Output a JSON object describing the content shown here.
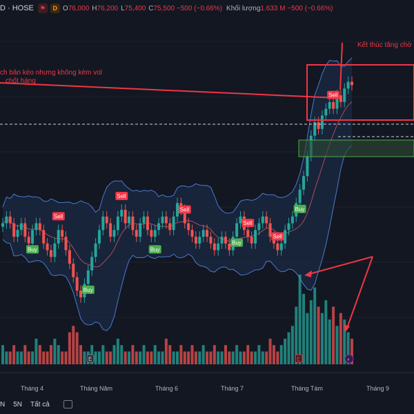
{
  "header": {
    "symbol": "D · HOSE",
    "badge_main": "D",
    "open_k": "O",
    "open": "76,000",
    "high_k": "H",
    "high": "76,200",
    "low_k": "L",
    "low": "75,400",
    "close_k": "C",
    "close": "75,500 −500 (−0.66%)",
    "volume_k": "Khối lượng",
    "volume": "1.633 M −500 (−0.66%)"
  },
  "annotations": {
    "note1": "ch bản kéo nhưng không kèm vol",
    "note2": "chốt hàng",
    "note3": "Kết thúc tăng chờ"
  },
  "signals": {
    "buy": "Buy",
    "sell": "Sell"
  },
  "event_icons": {
    "e": "E",
    "flash": "⚡"
  },
  "toolbar": {
    "r1": "N",
    "r2": "5N",
    "r3": "Tất cả",
    "goto_icon": "calendar-goto-icon"
  },
  "colors": {
    "up": "#26a69a",
    "down": "#ef5350",
    "band": "#4a7bd0",
    "accent": "#f23645"
  },
  "chart_data": {
    "type": "candlestick",
    "x_axis_labels": [
      "Tháng 4",
      "Tháng Năm",
      "Tháng 6",
      "Tháng 7",
      "Tháng Tám",
      "Tháng 9"
    ],
    "close_series": [
      55,
      56,
      55,
      53,
      54,
      55,
      53,
      52,
      54,
      55,
      54,
      52,
      51,
      50,
      52,
      54,
      53,
      51,
      49,
      47,
      45,
      44,
      46,
      48,
      50,
      52,
      54,
      56,
      55,
      53,
      54,
      56,
      57,
      55,
      56,
      54,
      53,
      55,
      56,
      54,
      53,
      54,
      55,
      56,
      55,
      54,
      56,
      58,
      57,
      55,
      54,
      53,
      52,
      53,
      54,
      53,
      52,
      51,
      52,
      53,
      52,
      51,
      53,
      55,
      56,
      54,
      53,
      52,
      54,
      55,
      56,
      55,
      53,
      52,
      51,
      52,
      54,
      55,
      56,
      58,
      60,
      62,
      65,
      68,
      70,
      69,
      71,
      72,
      73,
      72,
      74,
      73,
      75,
      76,
      75.5
    ],
    "volume": [
      3,
      2,
      2,
      3,
      2,
      2,
      3,
      2,
      2,
      4,
      3,
      2,
      2,
      3,
      4,
      3,
      2,
      2,
      5,
      6,
      5,
      3,
      2,
      2,
      3,
      2,
      2,
      3,
      2,
      2,
      3,
      4,
      3,
      2,
      2,
      3,
      2,
      2,
      3,
      2,
      2,
      3,
      2,
      2,
      4,
      3,
      2,
      2,
      3,
      2,
      2,
      3,
      2,
      2,
      3,
      2,
      2,
      3,
      2,
      2,
      3,
      2,
      2,
      3,
      2,
      2,
      3,
      2,
      2,
      3,
      2,
      2,
      4,
      3,
      2,
      3,
      4,
      5,
      6,
      9,
      14,
      11,
      8,
      10,
      12,
      9,
      8,
      10,
      7,
      9,
      6,
      8,
      7,
      5,
      4
    ],
    "buy_signals": [
      8,
      23,
      41,
      63,
      80
    ],
    "sell_signals": [
      15,
      32,
      49,
      66,
      74,
      89
    ],
    "series": [
      {
        "name": "Bollinger Bands"
      },
      {
        "name": "MA"
      }
    ]
  }
}
